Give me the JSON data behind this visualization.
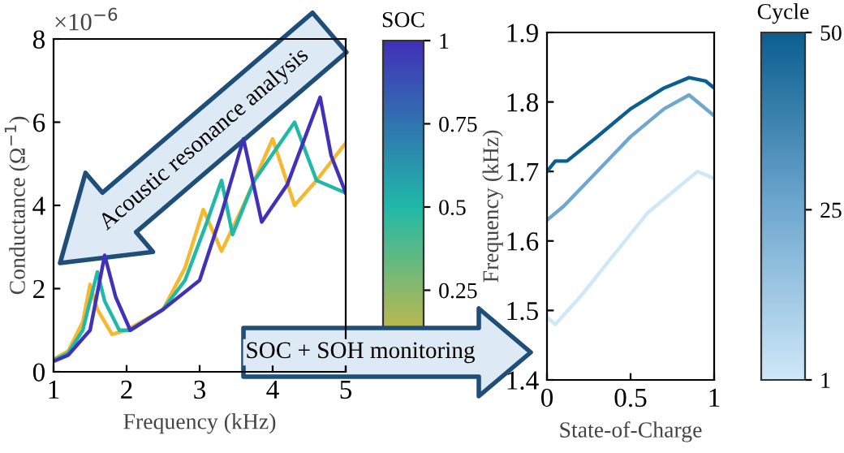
{
  "chart_data": [
    {
      "type": "line",
      "xlabel": "Frequency (kHz)",
      "ylabel": "Conductance (Ω$^{−1}$)",
      "clabel": "SOC",
      "xlim": [
        1,
        5
      ],
      "ylim": [
        0,
        8
      ],
      "xticks": [
        1,
        2,
        3,
        4,
        5
      ],
      "yticks": [
        0,
        2,
        4,
        6,
        8
      ],
      "clim": [
        0,
        1
      ],
      "cticks": [
        0.25,
        0.5,
        0.75,
        1
      ],
      "annotations": [
        "×10$^{−6}$",
        "Acoustic resonance analysis",
        "SOC + SOH monitoring"
      ],
      "series": [
        {
          "color": "#f5b82e",
          "x": [
            1,
            1.2,
            1.4,
            1.5,
            1.6,
            1.8,
            2.0,
            2.5,
            2.8,
            3.05,
            3.3,
            3.6,
            4.0,
            4.3,
            4.6,
            5.0
          ],
          "values": [
            0.3,
            0.5,
            1.2,
            2.1,
            1.5,
            0.9,
            1.0,
            1.5,
            2.5,
            3.9,
            2.9,
            4.0,
            5.6,
            4.0,
            4.6,
            5.5
          ]
        },
        {
          "color": "#20b9a8",
          "x": [
            1,
            1.2,
            1.4,
            1.6,
            1.7,
            1.9,
            2.05,
            2.5,
            2.8,
            3.1,
            3.3,
            3.45,
            3.75,
            4.3,
            4.6,
            5.0
          ],
          "values": [
            0.28,
            0.45,
            1.0,
            2.4,
            1.7,
            1.0,
            1.0,
            1.5,
            2.2,
            3.6,
            4.6,
            3.3,
            4.6,
            6.0,
            4.6,
            4.3
          ]
        },
        {
          "color": "#4130b8",
          "x": [
            1,
            1.2,
            1.5,
            1.7,
            1.85,
            2.05,
            2.5,
            3.0,
            3.3,
            3.6,
            3.85,
            4.2,
            4.65,
            4.8,
            5.0
          ],
          "values": [
            0.25,
            0.4,
            1.0,
            2.8,
            1.8,
            1.0,
            1.5,
            2.2,
            3.8,
            5.6,
            3.6,
            4.5,
            6.6,
            5.2,
            4.3
          ]
        }
      ]
    },
    {
      "type": "line",
      "xlabel": "State-of-Charge",
      "ylabel": "Frequency (kHz)",
      "clabel": "Cycle",
      "xlim": [
        0,
        1
      ],
      "ylim": [
        1.4,
        1.9
      ],
      "xticks": [
        0,
        0.5,
        1
      ],
      "yticks": [
        1.4,
        1.5,
        1.6,
        1.7,
        1.8,
        1.9
      ],
      "clim": [
        1,
        50
      ],
      "cticks": [
        1,
        25,
        50
      ],
      "series": [
        {
          "color": "#cfe8f8",
          "x": [
            0,
            0.05,
            0.2,
            0.4,
            0.6,
            0.8,
            0.9,
            1.0
          ],
          "values": [
            1.49,
            1.48,
            1.52,
            1.58,
            1.64,
            1.68,
            1.7,
            1.69
          ]
        },
        {
          "color": "#6fa7cf",
          "x": [
            0,
            0.1,
            0.3,
            0.5,
            0.7,
            0.85,
            1.0
          ],
          "values": [
            1.63,
            1.65,
            1.7,
            1.75,
            1.79,
            1.81,
            1.78
          ]
        },
        {
          "color": "#0b5f8f",
          "x": [
            0,
            0.05,
            0.12,
            0.3,
            0.5,
            0.7,
            0.85,
            0.95,
            1.0
          ],
          "values": [
            1.7,
            1.715,
            1.715,
            1.75,
            1.79,
            1.82,
            1.835,
            1.83,
            1.82
          ]
        }
      ]
    }
  ]
}
